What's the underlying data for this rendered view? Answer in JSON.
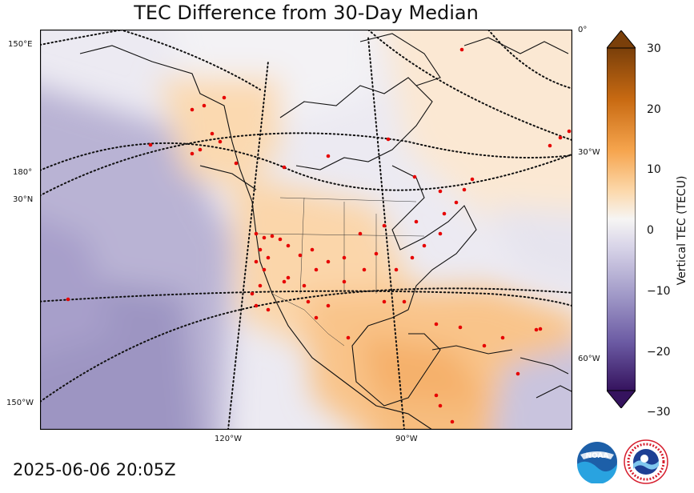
{
  "title": "TEC Difference from 30-Day Median",
  "timestamp": "2025-06-06 20:05Z",
  "map": {
    "left_labels": [
      "150°E",
      "180°",
      "30°N",
      "150°W"
    ],
    "right_labels": [
      "0°",
      "30°W",
      "60°W"
    ],
    "bottom_labels": [
      "120°W",
      "90°W"
    ]
  },
  "colorbar": {
    "label": "Vertical TEC (TECU)",
    "ticks": [
      "30",
      "20",
      "10",
      "0",
      "−10",
      "−20",
      "−30"
    ],
    "range": [
      -30,
      30
    ]
  },
  "logos": {
    "noaa": "NOAA",
    "nws": "NATIONAL WEATHER SERVICE"
  }
}
